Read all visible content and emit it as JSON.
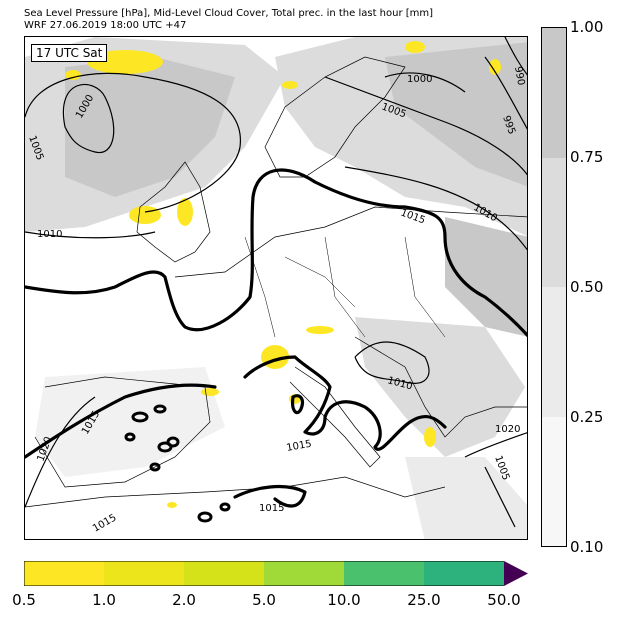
{
  "header": {
    "title_line1": "Sea Level Pressure [hPa], Mid-Level Cloud Cover, Total prec. in the last hour [mm]",
    "title_line2": "WRF 27.06.2019 18:00 UTC +47"
  },
  "map": {
    "time_label": "17 UTC Sat",
    "isobar_labels": [
      "1000",
      "995",
      "990",
      "1000",
      "1005",
      "1005",
      "1010",
      "1015",
      "1010",
      "1010",
      "1020",
      "1015",
      "1015",
      "1015",
      "1020",
      "1010",
      "1005",
      "1015"
    ],
    "colors": {
      "cloud_dense": "#c8c8c8",
      "cloud_light": "#dcdcdc",
      "precip": "#fde725",
      "coast": "#000000"
    }
  },
  "cloud_cover_colorbar": {
    "ticks": [
      "1.00",
      "0.75",
      "0.50",
      "0.25",
      "0.10"
    ],
    "segments": [
      {
        "range": "0.75-1.00",
        "color": "#c8c8c8"
      },
      {
        "range": "0.50-0.75",
        "color": "#dcdcdc"
      },
      {
        "range": "0.25-0.50",
        "color": "#ebebeb"
      },
      {
        "range": "0.10-0.25",
        "color": "#f7f7f7"
      }
    ]
  },
  "precip_colorbar": {
    "ticks": [
      "0.5",
      "1.0",
      "2.0",
      "5.0",
      "10.0",
      "25.0",
      "50.0"
    ],
    "colors": [
      "#fde725",
      "#ece51b",
      "#d5e21a",
      "#a0da39",
      "#4ac16d",
      "#2db27d",
      "#3b528b"
    ],
    "extend_color": "#440154"
  }
}
